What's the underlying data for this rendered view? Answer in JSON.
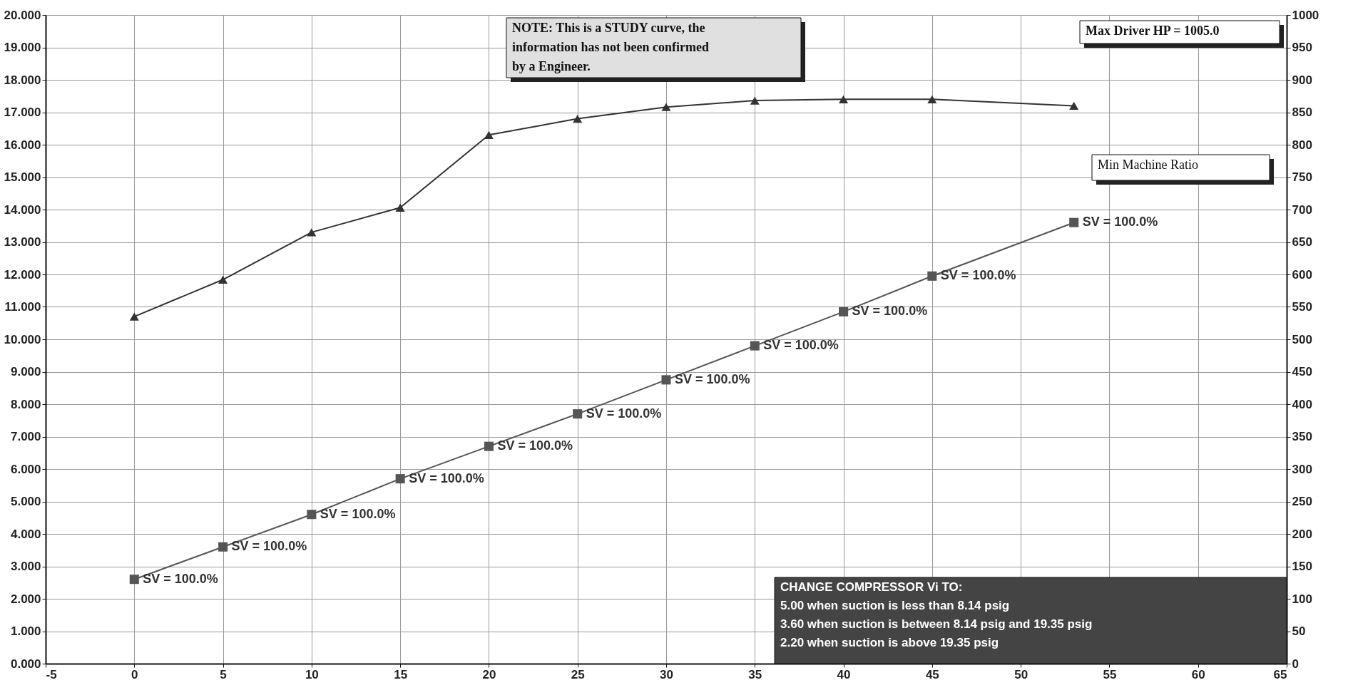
{
  "chart_data": {
    "type": "line",
    "x": [
      0,
      5,
      10,
      15,
      20,
      25,
      30,
      35,
      40,
      45,
      53
    ],
    "xlim": [
      -5,
      65
    ],
    "xticks": [
      -5,
      0,
      5,
      10,
      15,
      20,
      25,
      30,
      35,
      40,
      45,
      50,
      55,
      60,
      65
    ],
    "ylim": [
      0,
      20
    ],
    "yticks": [
      {
        "value": 0,
        "label": "0.000"
      },
      {
        "value": 1,
        "label": "1.000"
      },
      {
        "value": 2,
        "label": "2.000"
      },
      {
        "value": 3,
        "label": "3.000"
      },
      {
        "value": 4,
        "label": "4.000"
      },
      {
        "value": 5,
        "label": "5.000"
      },
      {
        "value": 6,
        "label": "6.000"
      },
      {
        "value": 7,
        "label": "7.000"
      },
      {
        "value": 8,
        "label": "8.000"
      },
      {
        "value": 9,
        "label": "9.000"
      },
      {
        "value": 10,
        "label": "10.000"
      },
      {
        "value": 11,
        "label": "11.000"
      },
      {
        "value": 12,
        "label": "12.000"
      },
      {
        "value": 13,
        "label": "13.000"
      },
      {
        "value": 14,
        "label": "14.000"
      },
      {
        "value": 15,
        "label": "15.000"
      },
      {
        "value": 16,
        "label": "16.000"
      },
      {
        "value": 17,
        "label": "17.000"
      },
      {
        "value": 18,
        "label": "18.000"
      },
      {
        "value": 19,
        "label": "19.000"
      },
      {
        "value": 20,
        "label": "20.000"
      }
    ],
    "y2lim": [
      0,
      1000
    ],
    "y2ticks": [
      0,
      50,
      100,
      150,
      200,
      250,
      300,
      350,
      400,
      450,
      500,
      550,
      600,
      650,
      700,
      750,
      800,
      850,
      900,
      950,
      1000
    ],
    "grid": true,
    "line_style": "solid",
    "series": [
      {
        "color": "#555555",
        "marker": "square",
        "values": [
          2.6,
          3.6,
          4.6,
          5.7,
          6.7,
          7.7,
          8.75,
          9.8,
          10.85,
          11.95,
          13.6
        ]
      },
      {
        "color": "#333333",
        "marker": "triangle",
        "axis": "y2",
        "values": [
          535,
          592,
          665,
          703,
          815,
          840,
          858,
          868,
          870,
          870,
          860
        ]
      }
    ],
    "annotations": [
      "NOTE:  This is a STUDY curve, the\ninformation has not been confirmed\nby a Engineer.",
      "Max Driver HP = 1005.0",
      "Min Machine Ratio",
      "CHANGE COMPRESSOR Vi TO:\n        5.00  when suction is less than    8.14 psig\n        3.60  when suction is between     8.14 psig and 19.35 psig\n        2.20  when suction is above          19.35 psig",
      {
        "text": "SV = 100.0%",
        "x": 0,
        "y": 2.6
      },
      {
        "text": "SV = 100.0%",
        "x": 5,
        "y": 3.6
      },
      {
        "text": "SV = 100.0%",
        "x": 10,
        "y": 4.6
      },
      {
        "text": "SV = 100.0%",
        "x": 15,
        "y": 5.7
      },
      {
        "text": "SV = 100.0%",
        "x": 20,
        "y": 6.7
      },
      {
        "text": "SV = 100.0%",
        "x": 25,
        "y": 7.7
      },
      {
        "text": "SV = 100.0%",
        "x": 30,
        "y": 8.75
      },
      {
        "text": "SV = 100.0%",
        "x": 35,
        "y": 9.8
      },
      {
        "text": "SV = 100.0%",
        "x": 40,
        "y": 10.85
      },
      {
        "text": "SV = 100.0%",
        "x": 45,
        "y": 11.95
      },
      {
        "text": "SV = 100.0%",
        "x": 53,
        "y": 13.6
      }
    ]
  }
}
